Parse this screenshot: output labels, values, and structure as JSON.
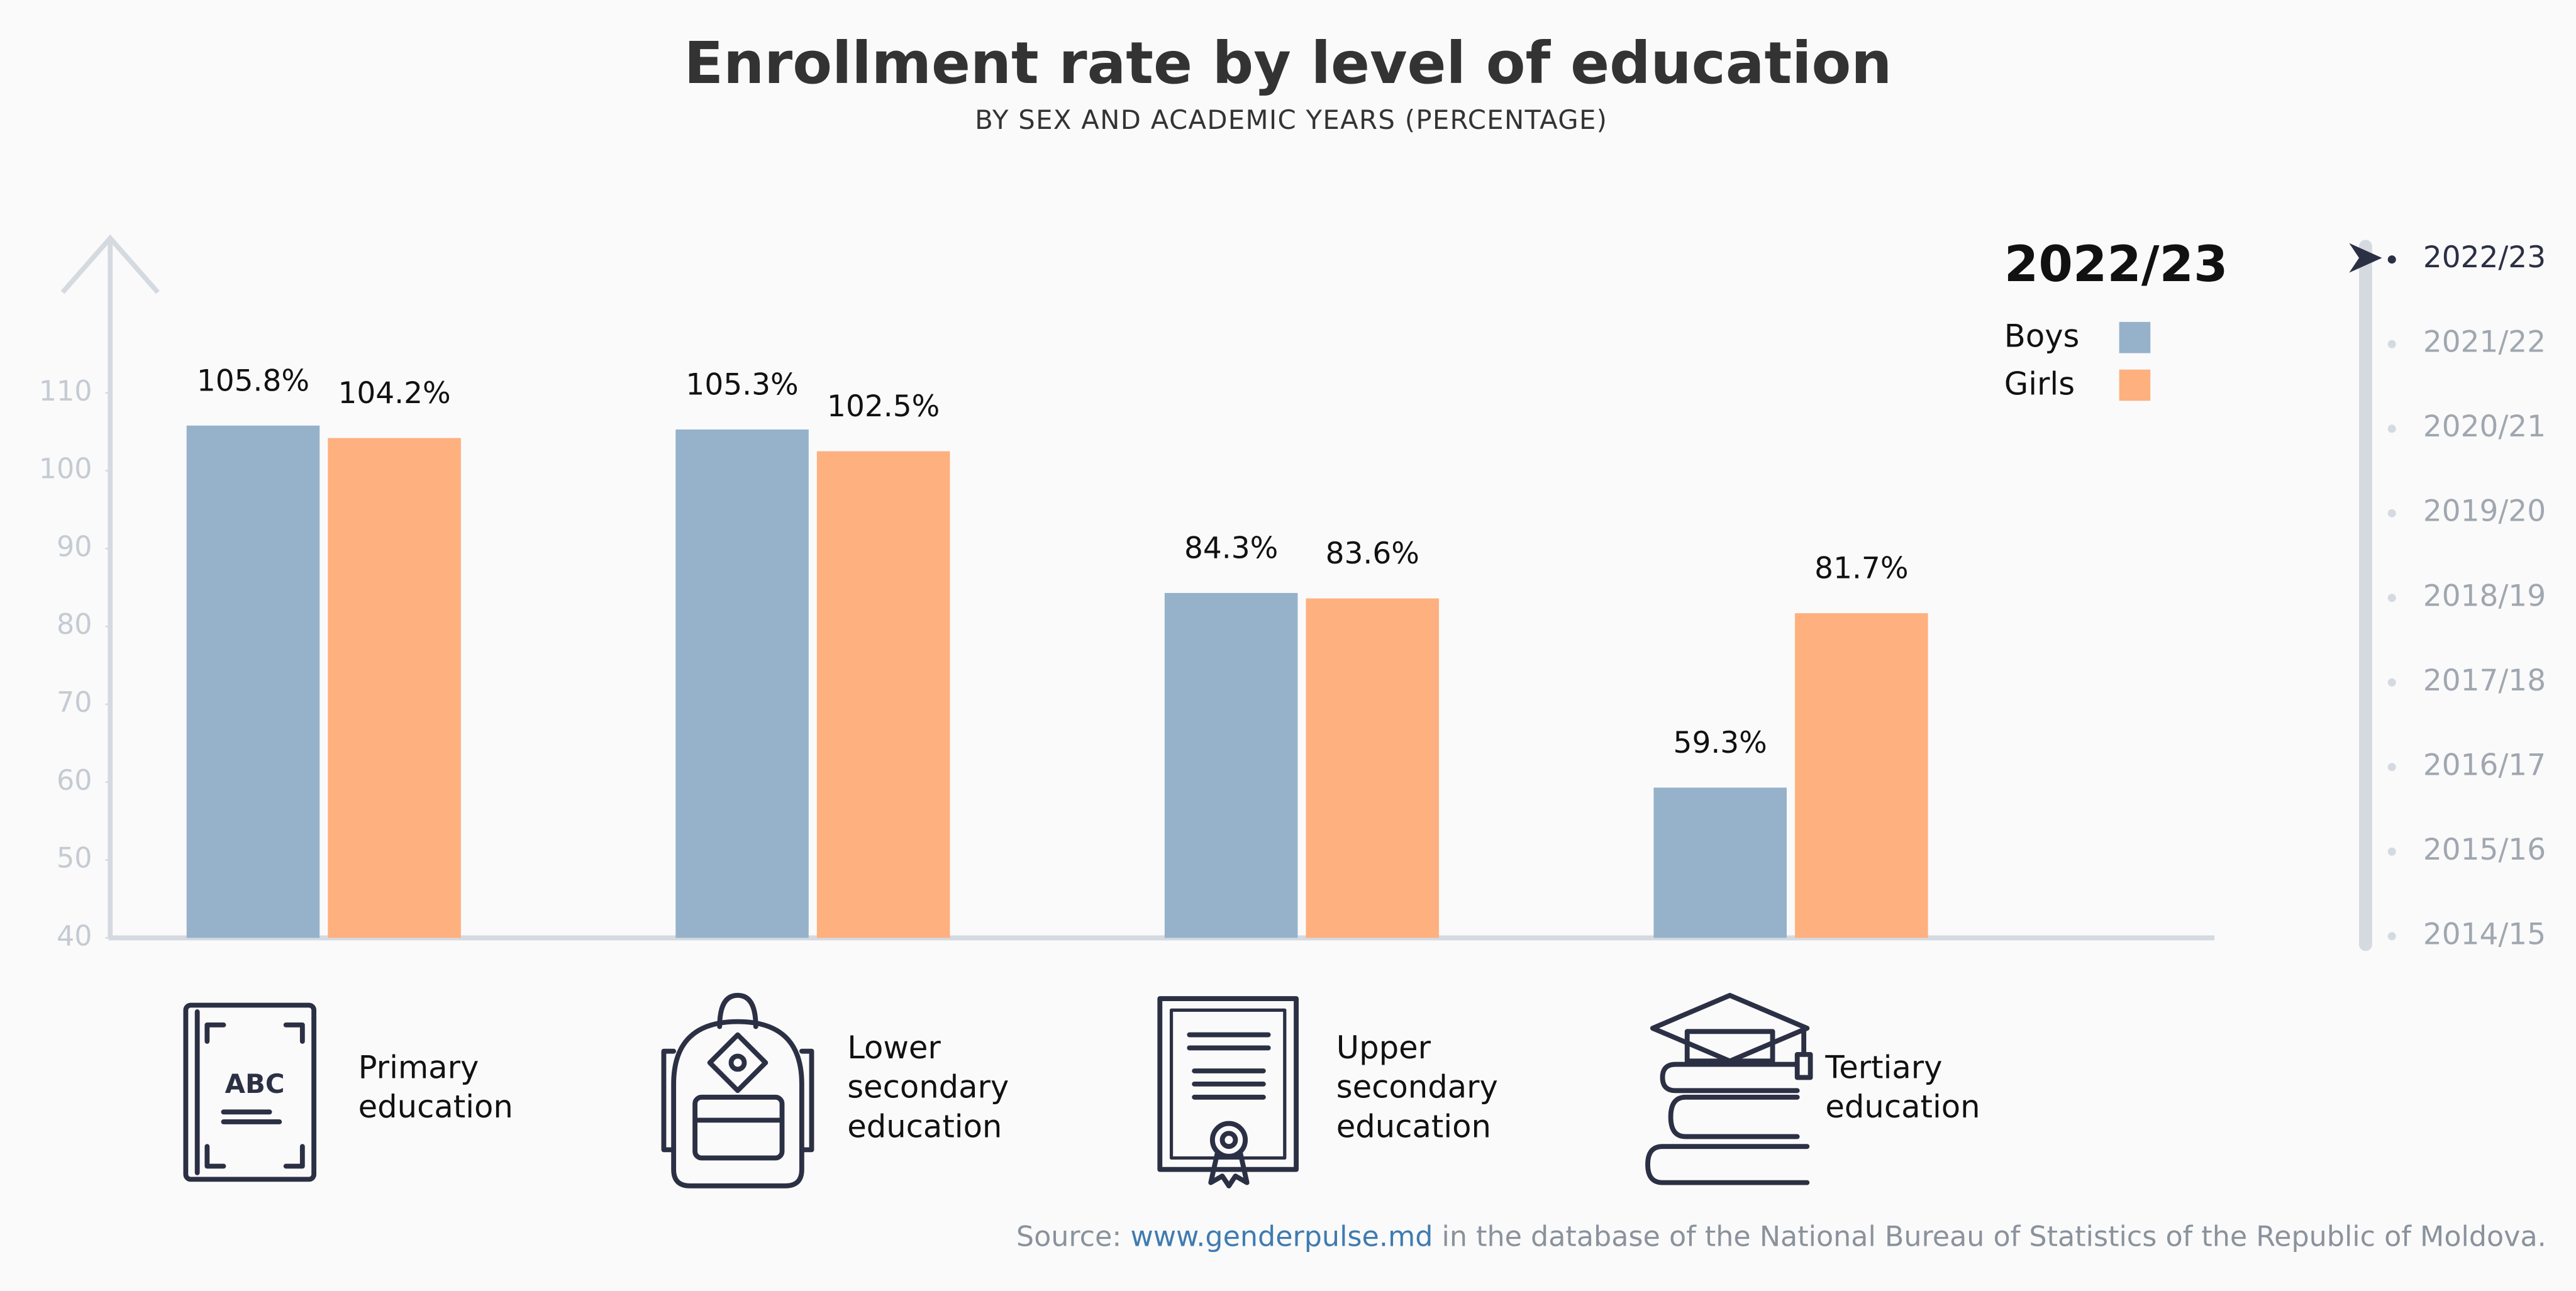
{
  "chart_data": {
    "type": "bar",
    "title": "Enrollment rate by level of education",
    "subtitle": "BY SEX AND ACADEMIC YEARS (PERCENTAGE)",
    "categories": [
      "Primary education",
      "Lower secondary education",
      "Upper secondary education",
      "Tertiary education"
    ],
    "series": [
      {
        "name": "Boys",
        "color": "#96b2ca",
        "values": [
          105.8,
          105.3,
          84.3,
          59.3
        ],
        "value_labels": [
          "105.8%",
          "105.3%",
          "84.3%",
          "59.3%"
        ]
      },
      {
        "name": "Girls",
        "color": "#feb07f",
        "values": [
          104.2,
          102.5,
          83.6,
          81.7
        ],
        "value_labels": [
          "104.2%",
          "102.5%",
          "83.6%",
          "81.7%"
        ]
      }
    ],
    "ylim": [
      40,
      130
    ],
    "yticks": [
      40,
      50,
      60,
      70,
      80,
      90,
      100,
      110
    ],
    "legend_title": "2022/23",
    "icon_text": "ABC",
    "timeline": [
      "2022/23",
      "2021/22",
      "2020/21",
      "2019/20",
      "2018/19",
      "2017/18",
      "2016/17",
      "2015/16",
      "2014/15"
    ],
    "source": {
      "prefix": "Source:",
      "link": "www.genderpulse.md",
      "suffix": "in the database of the National Bureau of Statistics of the Republic of Moldova."
    }
  }
}
